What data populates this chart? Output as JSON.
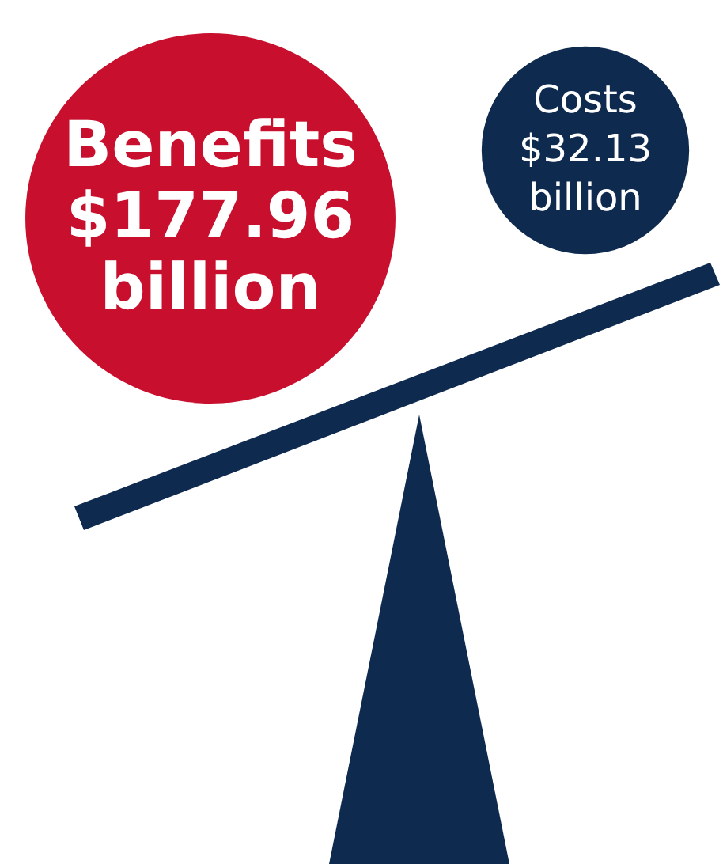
{
  "chart_data": {
    "type": "other",
    "categories": [
      "Benefits",
      "Costs"
    ],
    "values": [
      177.96,
      32.13
    ],
    "value_labels": [
      "$177.96 billion",
      "$32.13 billion"
    ],
    "colors": [
      "#c8102e",
      "#0f2a4f"
    ]
  }
}
